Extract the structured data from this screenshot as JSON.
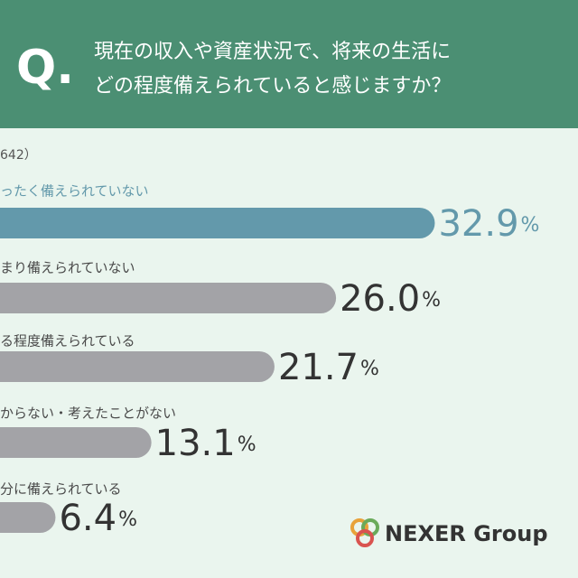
{
  "header": {
    "mark": "Q.",
    "lines": [
      "現在の収入や資産状況で、将来の生活に",
      "どの程度備えられていると感じますか？"
    ]
  },
  "chart_data": {
    "type": "bar",
    "orientation": "horizontal",
    "note": "642）",
    "categories": [
      "ったく備えられていない",
      "まり備えられていない",
      "る程度備えられている",
      "からない・考えたことがない",
      "分に備えられている"
    ],
    "values": [
      32.9,
      26.0,
      21.7,
      13.1,
      6.4
    ],
    "value_labels": [
      "32.9%",
      "26.0%",
      "21.7%",
      "13.1%",
      "6.4%"
    ],
    "colors": [
      "#6399ab",
      "#a3a3a7",
      "#a3a3a7",
      "#a3a3a7",
      "#a3a3a7"
    ],
    "label_colors": [
      "#6399ab",
      "#4a4a4a",
      "#4a4a4a",
      "#4a4a4a",
      "#4a4a4a"
    ],
    "value_colors": [
      "#6399ab",
      "#333333",
      "#333333",
      "#333333",
      "#333333"
    ]
  },
  "logo": {
    "text": "NEXER Group"
  }
}
